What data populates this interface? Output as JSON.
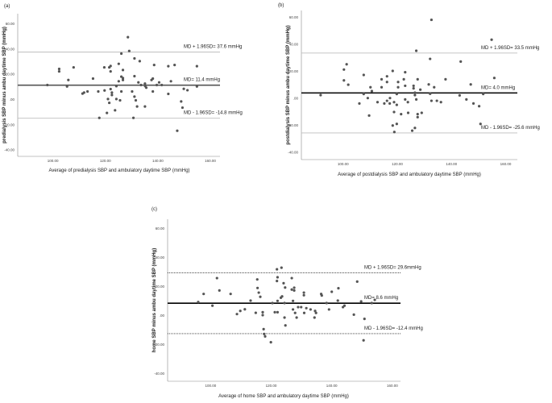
{
  "chart_data": [
    {
      "type": "scatter",
      "panel_label": "(a)",
      "xlabel": "Average of predialysis SBP and ambulatory daytime SBP (mmHg)",
      "ylabel": "predialysis SBP minus ambu daytime SBP (mmHg)",
      "xlim": [
        86.6,
        163.7
      ],
      "ylim": [
        -45,
        68
      ],
      "xticks": [
        {
          "v": 100,
          "t": "100.00"
        },
        {
          "v": 120,
          "t": "120.00"
        },
        {
          "v": 140,
          "t": "140.00"
        },
        {
          "v": 160,
          "t": "160.00"
        }
      ],
      "yticks": [
        {
          "v": -40,
          "t": "-40.00"
        },
        {
          "v": -20,
          "t": "-20.00"
        },
        {
          "v": 0,
          "t": ".00"
        },
        {
          "v": 20,
          "t": "20.00"
        },
        {
          "v": 40,
          "t": "40.00"
        },
        {
          "v": 60,
          "t": "60.00"
        }
      ],
      "lines": [
        {
          "value": 37.6,
          "label": "MD + 1.96SD= 37.6 mmHg",
          "style": "upper"
        },
        {
          "value": 11.4,
          "label": "MD= 11.4 mmHg",
          "style": "mean"
        },
        {
          "value": -14.8,
          "label": "MD - 1.96SD= -14.8 mmHg",
          "style": "lower"
        }
      ],
      "limit_color": "#bdbdbd",
      "mean_color": "#555555",
      "point_color": "#555555",
      "points": [
        [
          97.9,
          11.5
        ],
        [
          102.4,
          24.3
        ],
        [
          102.4,
          22.3
        ],
        [
          105.4,
          10.4
        ],
        [
          105.9,
          15.5
        ],
        [
          107.9,
          25.5
        ],
        [
          111.3,
          4.7
        ],
        [
          111.9,
          5.5
        ],
        [
          113.2,
          6.4
        ],
        [
          115.3,
          16.6
        ],
        [
          117.3,
          6.4
        ],
        [
          117.7,
          -14.5
        ],
        [
          119.6,
          25.5
        ],
        [
          119.7,
          7.2
        ],
        [
          120.6,
          -10.6
        ],
        [
          121,
          0.4
        ],
        [
          121.5,
          -2.6
        ],
        [
          121.5,
          25.5
        ],
        [
          122,
          26.6
        ],
        [
          122,
          22.3
        ],
        [
          122,
          8.3
        ],
        [
          122.5,
          5.5
        ],
        [
          122.5,
          3.6
        ],
        [
          123.7,
          -8.5
        ],
        [
          124.2,
          10.6
        ],
        [
          124.2,
          0.4
        ],
        [
          125.1,
          28.3
        ],
        [
          125.1,
          14.5
        ],
        [
          125.6,
          -0.6
        ],
        [
          126.1,
          36.4
        ],
        [
          126.1,
          18.1
        ],
        [
          126.1,
          6.4
        ],
        [
          126.7,
          23.4
        ],
        [
          126.7,
          17
        ],
        [
          126.7,
          15.5
        ],
        [
          128.6,
          49.4
        ],
        [
          129.1,
          38.5
        ],
        [
          130.2,
          6.4
        ],
        [
          130.7,
          -14.5
        ],
        [
          131.1,
          32.6
        ],
        [
          131.1,
          18.5
        ],
        [
          131.1,
          2.3
        ],
        [
          131.6,
          -0.6
        ],
        [
          132.1,
          -5.5
        ],
        [
          132.6,
          13.6
        ],
        [
          133.1,
          30.4
        ],
        [
          133.6,
          11.5
        ],
        [
          135.1,
          -5.5
        ],
        [
          135.1,
          12.6
        ],
        [
          135.2,
          10.6
        ],
        [
          135.6,
          9.4
        ],
        [
          137.6,
          15.5
        ],
        [
          138.1,
          16.6
        ],
        [
          138.1,
          6.4
        ],
        [
          138.6,
          27.4
        ],
        [
          139.6,
          11.5
        ],
        [
          140.5,
          13.6
        ],
        [
          141.5,
          11.5
        ],
        [
          144,
          4.5
        ],
        [
          144,
          26.4
        ],
        [
          145,
          14.5
        ],
        [
          146.4,
          27.4
        ],
        [
          147.4,
          -24.7
        ],
        [
          148.9,
          -1.5
        ],
        [
          149.4,
          -6.4
        ],
        [
          149.9,
          8.5
        ],
        [
          151.3,
          7.4
        ],
        [
          154.9,
          26.4
        ],
        [
          154.9,
          10.4
        ]
      ]
    },
    {
      "type": "scatter",
      "panel_label": "(b)",
      "xlabel": "Average of postdialysis SBP and ambulatory daytime SBP (mmHg)",
      "ylabel": "postdialysis SBP minus ambu daytime SBP (mmHg)",
      "xlim": [
        84.6,
        164.3
      ],
      "ylim": [
        -45.3,
        65
      ],
      "xticks": [
        {
          "v": 100,
          "t": "100.00"
        },
        {
          "v": 120,
          "t": "120.00"
        },
        {
          "v": 140,
          "t": "140.00"
        },
        {
          "v": 160,
          "t": "160.00"
        }
      ],
      "yticks": [
        {
          "v": -40,
          "t": "-40.00"
        },
        {
          "v": -20,
          "t": "-20.00"
        },
        {
          "v": 0,
          "t": ".00"
        },
        {
          "v": 20,
          "t": "20.00"
        },
        {
          "v": 40,
          "t": "40.00"
        },
        {
          "v": 60,
          "t": "60.00"
        }
      ],
      "lines": [
        {
          "value": 33.5,
          "label": "MD + 1.96SD= 33.5 mmHg",
          "style": "upper"
        },
        {
          "value": 4.0,
          "label": "MD= 4.0 mmHg",
          "style": "mean"
        },
        {
          "value": -25.6,
          "label": "MD - 1.96SD= -25.6 mmHg",
          "style": "lower"
        }
      ],
      "limit_color": "#bdbdbd",
      "mean_color": "#111111",
      "point_color": "#555555",
      "points": [
        [
          91.7,
          2.4
        ],
        [
          100.3,
          21.3
        ],
        [
          100.3,
          13.3
        ],
        [
          101.3,
          25.2
        ],
        [
          101.9,
          10.1
        ],
        [
          106,
          -3.8
        ],
        [
          107.6,
          17.3
        ],
        [
          107.6,
          3.2
        ],
        [
          109.1,
          0.2
        ],
        [
          109.6,
          -12.7
        ],
        [
          110.1,
          8.2
        ],
        [
          110.6,
          5.4
        ],
        [
          112.7,
          -2.8
        ],
        [
          114.2,
          8.2
        ],
        [
          114.2,
          14.1
        ],
        [
          115.2,
          -3.8
        ],
        [
          116.2,
          16.3
        ],
        [
          116.2,
          12.1
        ],
        [
          116.2,
          -1.8
        ],
        [
          117.2,
          -3.8
        ],
        [
          117.3,
          0.2
        ],
        [
          118.3,
          20.3
        ],
        [
          118.3,
          -20.1
        ],
        [
          118.8,
          -2.8
        ],
        [
          118.8,
          -10.1
        ],
        [
          118.9,
          -24.9
        ],
        [
          119.8,
          3.2
        ],
        [
          119.8,
          -4.8
        ],
        [
          119.8,
          -18.9
        ],
        [
          120.3,
          12.1
        ],
        [
          120.3,
          8.2
        ],
        [
          121.4,
          -11.7
        ],
        [
          122.4,
          14.1
        ],
        [
          122.9,
          19.3
        ],
        [
          122.9,
          9.3
        ],
        [
          122.9,
          -0.8
        ],
        [
          123.9,
          -2.8
        ],
        [
          124,
          -10.7
        ],
        [
          125.5,
          -23.9
        ],
        [
          126,
          9.3
        ],
        [
          126,
          7.4
        ],
        [
          126.5,
          2.4
        ],
        [
          126.5,
          4.2
        ],
        [
          126.5,
          -21.9
        ],
        [
          127,
          35.2
        ],
        [
          127,
          -0.8
        ],
        [
          127.5,
          14.1
        ],
        [
          127.5,
          -11.7
        ],
        [
          127.5,
          -13.9
        ],
        [
          128.5,
          6.4
        ],
        [
          129,
          -10.7
        ],
        [
          131.6,
          10.3
        ],
        [
          132.1,
          29.2
        ],
        [
          132.1,
          3.4
        ],
        [
          132.6,
          58.1
        ],
        [
          132.6,
          -1.8
        ],
        [
          133.6,
          8.2
        ],
        [
          134.6,
          -1.8
        ],
        [
          136.1,
          -2.8
        ],
        [
          137.8,
          14.1
        ],
        [
          143,
          2.2
        ],
        [
          143.4,
          27.2
        ],
        [
          145.5,
          -0.8
        ],
        [
          147.1,
          10.3
        ],
        [
          148.1,
          -3.8
        ],
        [
          150.2,
          -5.8
        ],
        [
          150.7,
          -18.9
        ],
        [
          151.7,
          3.2
        ],
        [
          154.8,
          43.4
        ],
        [
          155.8,
          15.1
        ]
      ]
    },
    {
      "type": "scatter",
      "panel_label": "(c)",
      "xlabel": "Average of home SBP and ambulatory daytime SBP (mmHg)",
      "ylabel": "home SBP minus ambu daytime SBP (mmHg)",
      "xlim": [
        85.8,
        162.7
      ],
      "ylim": [
        -45.2,
        66.5
      ],
      "xticks": [
        {
          "v": 100,
          "t": "100.00"
        },
        {
          "v": 120,
          "t": "120.00"
        },
        {
          "v": 140,
          "t": "140.00"
        },
        {
          "v": 160,
          "t": "160.00"
        }
      ],
      "yticks": [
        {
          "v": -40,
          "t": "-40.00"
        },
        {
          "v": -20,
          "t": "-20.00"
        },
        {
          "v": 0,
          "t": ".00"
        },
        {
          "v": 20,
          "t": "20.00"
        },
        {
          "v": 40,
          "t": "40.00"
        },
        {
          "v": 60,
          "t": "60.00"
        }
      ],
      "lines": [
        {
          "value": 29.6,
          "label": "MD + 1.96SD= 29.6mmHg",
          "style": "upper"
        },
        {
          "value": 8.6,
          "label": "MD= 8.6 mmHg",
          "style": "mean"
        },
        {
          "value": -12.4,
          "label": "MD - 1.96SD= -12.4 mmHg",
          "style": "lower"
        }
      ],
      "limit_color": "#333333",
      "mean_color": "#000000",
      "point_color": "#555555",
      "points": [
        [
          95.9,
          9.4
        ],
        [
          97.7,
          15
        ],
        [
          100.6,
          6.9
        ],
        [
          102.1,
          25.9
        ],
        [
          102.9,
          17.4
        ],
        [
          106.6,
          15
        ],
        [
          108.7,
          1.1
        ],
        [
          109.8,
          3.3
        ],
        [
          111.3,
          4.4
        ],
        [
          113.2,
          10.4
        ],
        [
          114.9,
          2
        ],
        [
          115.4,
          25
        ],
        [
          115.5,
          19.1
        ],
        [
          115.9,
          15.9
        ],
        [
          116.4,
          13
        ],
        [
          117.2,
          0.4
        ],
        [
          117.2,
          2.4
        ],
        [
          117.5,
          -9.3
        ],
        [
          117.7,
          -12.6
        ],
        [
          118,
          -14.3
        ],
        [
          119.9,
          -18.3
        ],
        [
          120.4,
          8.7
        ],
        [
          121.2,
          2.4
        ],
        [
          121.9,
          32
        ],
        [
          121.9,
          23.9
        ],
        [
          122.1,
          26.5
        ],
        [
          122.1,
          10.2
        ],
        [
          122.1,
          2.4
        ],
        [
          123.2,
          12.4
        ],
        [
          123.6,
          13.3
        ],
        [
          123.4,
          33.1
        ],
        [
          124.1,
          22.4
        ],
        [
          124.4,
          8.7
        ],
        [
          124.4,
          -1.3
        ],
        [
          124.7,
          -6.7
        ],
        [
          124.6,
          19.4
        ],
        [
          126.8,
          25.9
        ],
        [
          126.8,
          18
        ],
        [
          127.2,
          10.2
        ],
        [
          127.2,
          4.3
        ],
        [
          127.6,
          19.3
        ],
        [
          127.6,
          17.4
        ],
        [
          127.9,
          1.9
        ],
        [
          128.4,
          -1.3
        ],
        [
          128.9,
          5.9
        ],
        [
          129.9,
          5.9
        ],
        [
          130.8,
          15.9
        ],
        [
          130.8,
          14.1
        ],
        [
          130.9,
          1.9
        ],
        [
          131.6,
          5.2
        ],
        [
          133,
          4.3
        ],
        [
          134.3,
          -1.3
        ],
        [
          134.5,
          3.3
        ],
        [
          134.8,
          1.9
        ],
        [
          136.5,
          15
        ],
        [
          136.7,
          13.9
        ],
        [
          138.3,
          8.7
        ],
        [
          139.1,
          4.3
        ],
        [
          140,
          16.5
        ],
        [
          142,
          10.4
        ],
        [
          142.2,
          18.9
        ],
        [
          143.7,
          5.9
        ],
        [
          144.2,
          6.9
        ],
        [
          147.3,
          0.7
        ],
        [
          148.4,
          23.5
        ],
        [
          149.7,
          9.8
        ],
        [
          150.8,
          -2.2
        ],
        [
          150.5,
          -17
        ],
        [
          153.2,
          8.7
        ],
        [
          154.2,
          10.9
        ]
      ]
    }
  ]
}
